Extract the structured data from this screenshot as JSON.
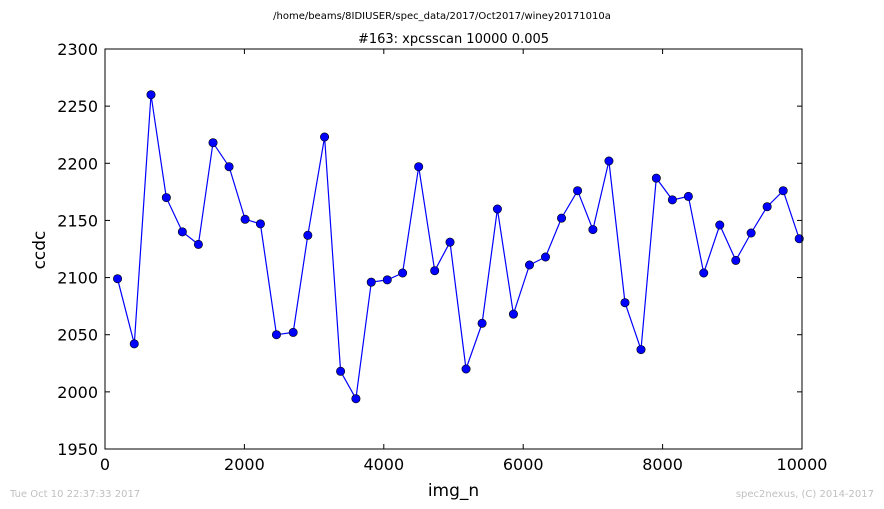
{
  "chart_data": {
    "type": "line",
    "suptitle": "/home/beams/8IDIUSER/spec_data/2017/Oct2017/winey20171010a",
    "title": "#163: xpcsscan 10000 0.005",
    "xlabel": "img_n",
    "ylabel": "ccdc",
    "xlim": [
      0,
      10000
    ],
    "ylim": [
      1950,
      2300
    ],
    "xticks": [
      0,
      2000,
      4000,
      6000,
      8000,
      10000
    ],
    "yticks": [
      1950,
      2000,
      2050,
      2100,
      2150,
      2200,
      2250,
      2300
    ],
    "x": [
      180,
      420,
      660,
      880,
      1110,
      1340,
      1550,
      1780,
      2010,
      2230,
      2460,
      2700,
      2910,
      3150,
      3380,
      3600,
      3820,
      4050,
      4270,
      4500,
      4730,
      4950,
      5180,
      5410,
      5630,
      5860,
      6090,
      6320,
      6550,
      6780,
      7000,
      7230,
      7460,
      7690,
      7910,
      8140,
      8370,
      8590,
      8820,
      9050,
      9270,
      9500,
      9730,
      9960
    ],
    "y": [
      2099,
      2042,
      2260,
      2170,
      2140,
      2129,
      2218,
      2197,
      2151,
      2147,
      2050,
      2052,
      2137,
      2223,
      2018,
      1994,
      2096,
      2098,
      2104,
      2197,
      2106,
      2131,
      2020,
      2060,
      2160,
      2068,
      2111,
      2118,
      2152,
      2176,
      2142,
      2202,
      2078,
      2037,
      2187,
      2168,
      2171,
      2104,
      2146,
      2115,
      2139,
      2162,
      2176,
      2134
    ],
    "series": [
      {
        "name": "",
        "color": "#0000ff"
      }
    ],
    "grid": false,
    "legend": false
  },
  "footer": {
    "left": "Tue Oct 10 22:37:33 2017",
    "right": "spec2nexus, (C) 2014-2017"
  }
}
